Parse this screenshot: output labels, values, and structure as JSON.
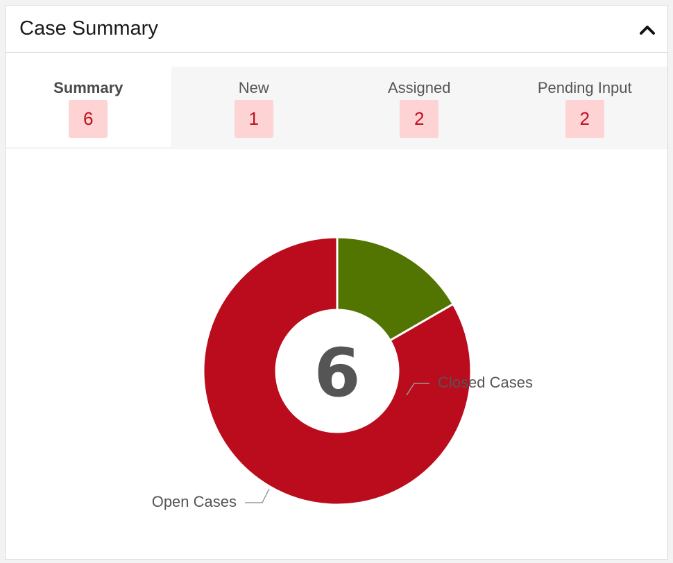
{
  "header": {
    "title": "Case Summary",
    "collapse_icon": "chevron-up-icon"
  },
  "tabs": [
    {
      "label": "Summary",
      "count": "6",
      "active": true
    },
    {
      "label": "New",
      "count": "1",
      "active": false
    },
    {
      "label": "Assigned",
      "count": "2",
      "active": false
    },
    {
      "label": "Pending Input",
      "count": "2",
      "active": false
    }
  ],
  "colors": {
    "open": "#ba0c1c",
    "closed": "#517500",
    "badge_bg": "#fdd3d3",
    "badge_text": "#c00f1f"
  },
  "chart_data": {
    "type": "pie",
    "variant": "donut",
    "center_label": "6",
    "series": [
      {
        "label": "Closed Cases",
        "value": 1
      },
      {
        "label": "Open Cases",
        "value": 5
      }
    ]
  }
}
